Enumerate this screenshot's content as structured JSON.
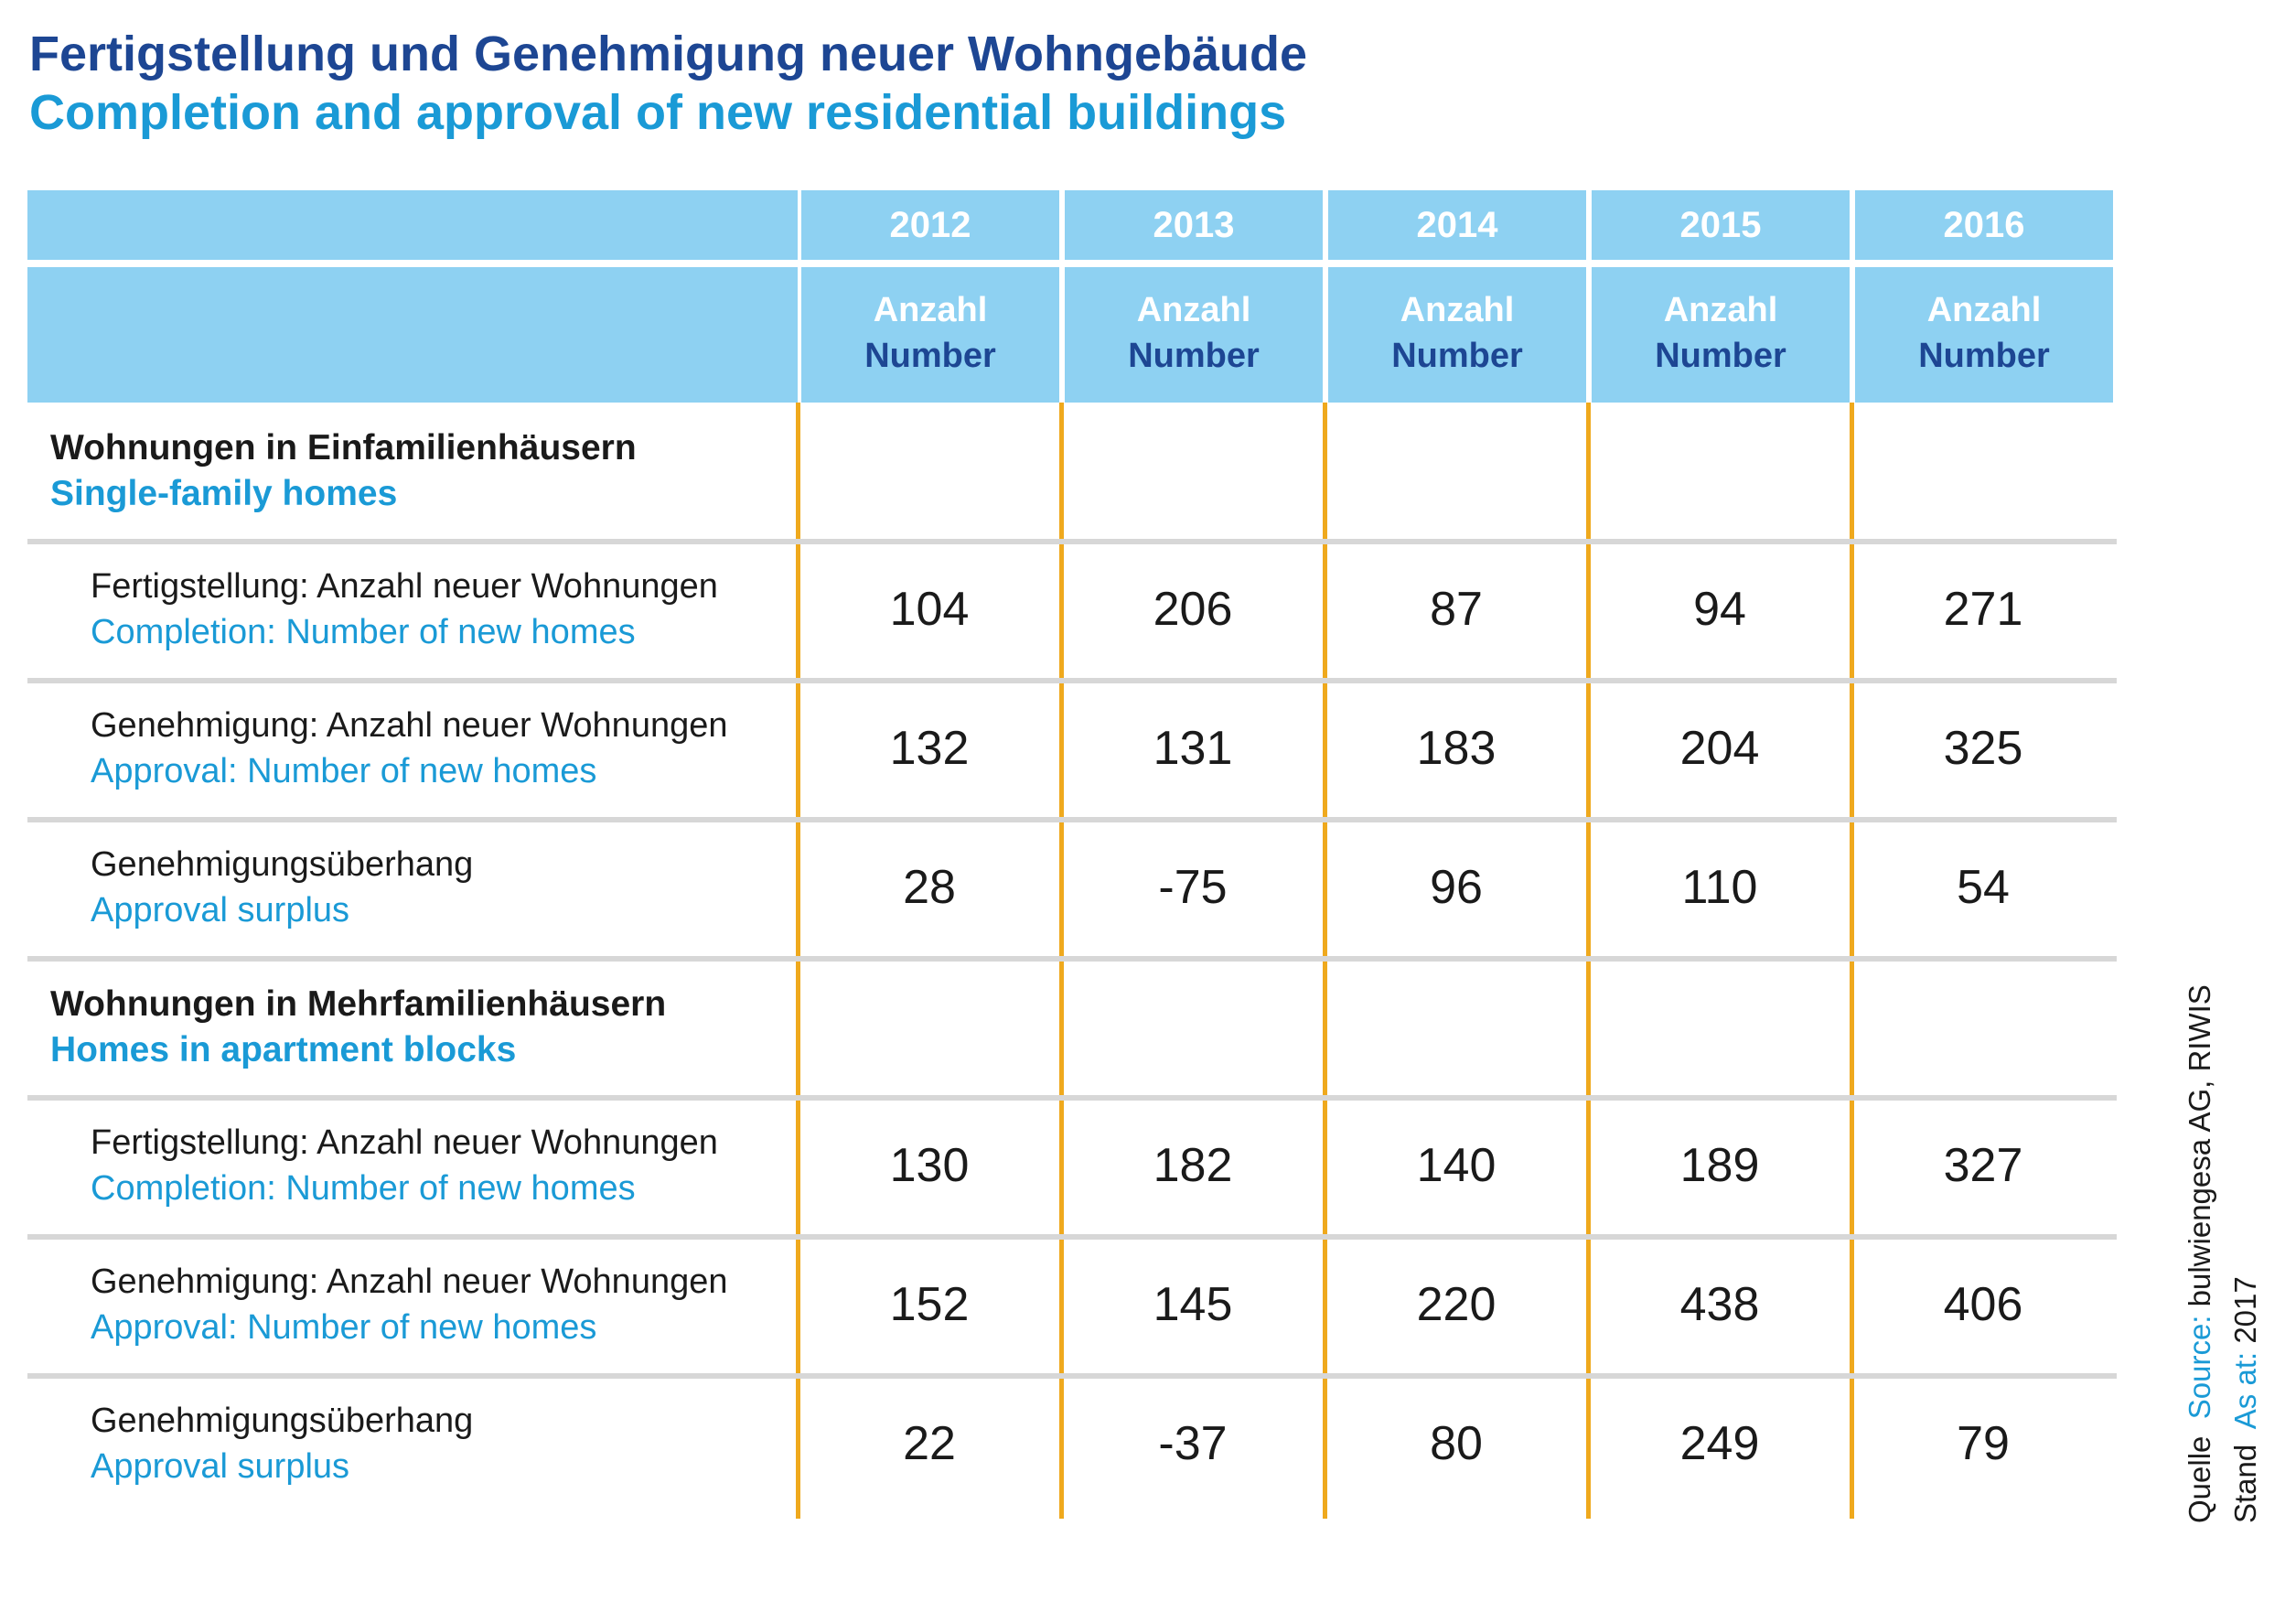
{
  "title_de": "Fertigstellung und Genehmigung neuer Wohngebäude",
  "title_en": "Completion and approval of new residential buildings",
  "chart_data": {
    "type": "table",
    "columns": [
      "2012",
      "2013",
      "2014",
      "2015",
      "2016"
    ],
    "unit_de": "Anzahl",
    "unit_en": "Number",
    "sections": [
      {
        "label_de": "Wohnungen in Einfamilienhäusern",
        "label_en": "Single-family homes",
        "rows": [
          {
            "label_de": "Fertigstellung: Anzahl neuer Wohnungen",
            "label_en": "Completion: Number of new homes",
            "values": [
              104,
              206,
              87,
              94,
              271
            ]
          },
          {
            "label_de": "Genehmigung: Anzahl neuer Wohnungen",
            "label_en": "Approval: Number of new homes",
            "values": [
              132,
              131,
              183,
              204,
              325
            ]
          },
          {
            "label_de": "Genehmigungsüberhang",
            "label_en": "Approval surplus",
            "values": [
              28,
              -75,
              96,
              110,
              54
            ]
          }
        ]
      },
      {
        "label_de": "Wohnungen in Mehrfamilienhäusern",
        "label_en": "Homes in apartment blocks",
        "rows": [
          {
            "label_de": "Fertigstellung: Anzahl neuer Wohnungen",
            "label_en": "Completion: Number of new homes",
            "values": [
              130,
              182,
              140,
              189,
              327
            ]
          },
          {
            "label_de": "Genehmigung: Anzahl neuer Wohnungen",
            "label_en": "Approval: Number of new homes",
            "values": [
              152,
              145,
              220,
              438,
              406
            ]
          },
          {
            "label_de": "Genehmigungsüberhang",
            "label_en": "Approval surplus",
            "values": [
              22,
              -37,
              80,
              249,
              79
            ]
          }
        ]
      }
    ]
  },
  "source": {
    "label_de": "Quelle",
    "label_en": "Source:",
    "value": "bulwiengesa AG, RIWIS",
    "date_de": "Stand",
    "date_en": "As at:",
    "date_value": "2017"
  },
  "colors": {
    "title_dark_blue": "#1d4693",
    "accent_blue": "#1a9ad6",
    "header_fill": "#8ed1f2",
    "column_divider": "#efa91d",
    "row_divider": "#d7d7d7"
  }
}
